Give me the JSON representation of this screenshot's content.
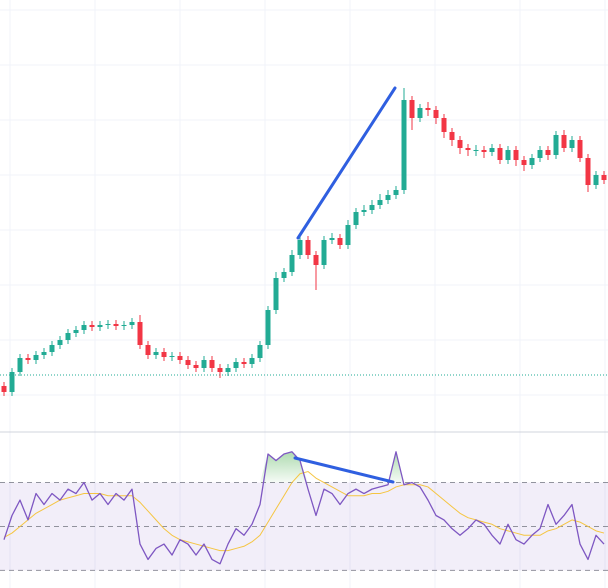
{
  "chart_data": [
    {
      "type": "candlestick",
      "open": [
        44,
        38,
        58,
        72,
        70,
        75,
        78,
        85,
        90,
        97,
        100,
        105,
        103,
        105,
        106,
        104,
        105,
        108,
        85,
        75,
        78,
        73,
        74,
        70,
        65,
        62,
        70,
        62,
        58,
        62,
        68,
        66,
        72,
        85,
        120,
        152,
        158,
        175,
        190,
        175,
        165,
        190,
        192,
        185,
        205,
        218,
        220,
        225,
        230,
        235,
        240,
        330,
        312,
        322,
        320,
        312,
        298,
        290,
        282,
        280,
        280,
        278,
        282,
        270,
        280,
        270,
        265,
        272,
        280,
        275,
        295,
        282,
        290,
        272,
        245,
        255
      ],
      "high": [
        48,
        62,
        76,
        76,
        79,
        82,
        89,
        94,
        101,
        104,
        109,
        109,
        109,
        110,
        110,
        109,
        112,
        115,
        89,
        82,
        82,
        78,
        78,
        74,
        69,
        74,
        74,
        66,
        66,
        72,
        72,
        76,
        89,
        124,
        158,
        162,
        180,
        196,
        194,
        179,
        194,
        197,
        196,
        210,
        222,
        225,
        230,
        236,
        240,
        244,
        342,
        334,
        326,
        328,
        324,
        316,
        302,
        294,
        286,
        285,
        284,
        286,
        286,
        284,
        284,
        274,
        276,
        284,
        284,
        299,
        300,
        294,
        294,
        276,
        259,
        259
      ],
      "low": [
        34,
        34,
        54,
        66,
        66,
        71,
        74,
        81,
        86,
        93,
        96,
        99,
        99,
        101,
        100,
        100,
        101,
        81,
        71,
        71,
        69,
        69,
        66,
        61,
        58,
        58,
        58,
        52,
        54,
        58,
        62,
        62,
        68,
        81,
        116,
        148,
        154,
        171,
        171,
        140,
        161,
        186,
        181,
        181,
        201,
        214,
        216,
        221,
        226,
        231,
        236,
        300,
        308,
        314,
        306,
        292,
        284,
        276,
        274,
        274,
        272,
        274,
        266,
        266,
        264,
        259,
        261,
        268,
        270,
        271,
        278,
        278,
        268,
        238,
        241,
        246
      ],
      "close": [
        38,
        58,
        72,
        70,
        75,
        78,
        85,
        90,
        97,
        100,
        105,
        103,
        105,
        106,
        104,
        105,
        108,
        85,
        75,
        78,
        73,
        74,
        70,
        65,
        62,
        70,
        62,
        58,
        62,
        68,
        66,
        72,
        85,
        120,
        152,
        158,
        175,
        190,
        175,
        165,
        190,
        192,
        185,
        205,
        218,
        220,
        225,
        230,
        235,
        240,
        330,
        312,
        322,
        320,
        312,
        298,
        290,
        282,
        280,
        280,
        278,
        282,
        270,
        280,
        270,
        265,
        272,
        280,
        275,
        295,
        282,
        290,
        272,
        245,
        255,
        250
      ],
      "up_color": "#22ab94",
      "down_color": "#f23645",
      "ylim": [
        0,
        430
      ],
      "grid": true,
      "price_line": 55,
      "price_line_color": "#22ab94"
    },
    {
      "type": "line",
      "series": [
        {
          "color": "#7e57c2",
          "values": [
            44,
            55,
            62,
            53,
            65,
            60,
            65,
            62,
            67,
            65,
            70,
            62,
            65,
            60,
            65,
            62,
            67,
            42,
            35,
            40,
            42,
            37,
            44,
            42,
            37,
            42,
            35,
            33,
            42,
            49,
            46,
            51,
            60,
            83,
            80,
            83,
            84,
            80,
            67,
            55,
            67,
            65,
            60,
            65,
            67,
            65,
            67,
            68,
            69,
            84,
            69,
            70,
            68,
            62,
            55,
            53,
            49,
            46,
            49,
            53,
            51,
            46,
            42,
            51,
            44,
            42,
            46,
            49,
            60,
            51,
            55,
            60,
            42,
            35,
            46,
            42
          ]
        },
        {
          "color": "#f5c542",
          "values": [
            45,
            47,
            50,
            53,
            56,
            58,
            60,
            62,
            63,
            64,
            65,
            65,
            65,
            64,
            64,
            64,
            64,
            61,
            57,
            53,
            49,
            46,
            44,
            43,
            42,
            41,
            40,
            39,
            39,
            40,
            41,
            43,
            46,
            52,
            58,
            64,
            70,
            74,
            75,
            72,
            70,
            68,
            66,
            64,
            64,
            64,
            65,
            65,
            66,
            68,
            69,
            69,
            69,
            68,
            65,
            62,
            59,
            56,
            54,
            53,
            52,
            51,
            49,
            48,
            47,
            46,
            46,
            46,
            48,
            49,
            51,
            53,
            52,
            50,
            48,
            47
          ]
        }
      ],
      "ylim": [
        22,
        93
      ],
      "levels": [
        70,
        50,
        30
      ],
      "band": [
        30,
        70
      ],
      "band_color": "#7e57c2",
      "overbought_color": "#4caf50",
      "grid": true
    }
  ]
}
